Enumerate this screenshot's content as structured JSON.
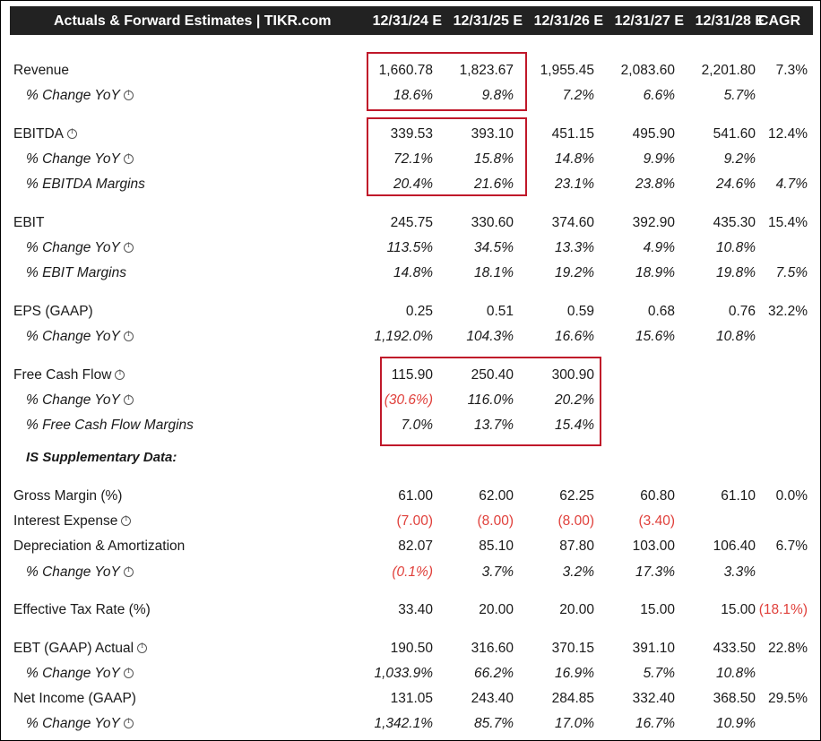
{
  "header": {
    "title": "Actuals & Forward Estimates | TIKR.com",
    "columns": [
      "12/31/24 E",
      "12/31/25 E",
      "12/31/26 E",
      "12/31/27 E",
      "12/31/28 E",
      "CAGR"
    ]
  },
  "colors": {
    "header_bg": "#222222",
    "negative": "#e0403b",
    "highlight_border": "#c0182a"
  },
  "rows": [
    {
      "label": "Revenue",
      "values": [
        "1,660.78",
        "1,823.67",
        "1,955.45",
        "2,083.60",
        "2,201.80",
        "7.3%"
      ]
    },
    {
      "label": "% Change YoY",
      "values": [
        "18.6%",
        "9.8%",
        "7.2%",
        "6.6%",
        "5.7%",
        ""
      ]
    },
    {
      "label": "EBITDA",
      "values": [
        "339.53",
        "393.10",
        "451.15",
        "495.90",
        "541.60",
        "12.4%"
      ]
    },
    {
      "label": "% Change YoY",
      "values": [
        "72.1%",
        "15.8%",
        "14.8%",
        "9.9%",
        "9.2%",
        ""
      ]
    },
    {
      "label": "% EBITDA Margins",
      "values": [
        "20.4%",
        "21.6%",
        "23.1%",
        "23.8%",
        "24.6%",
        "4.7%"
      ]
    },
    {
      "label": "EBIT",
      "values": [
        "245.75",
        "330.60",
        "374.60",
        "392.90",
        "435.30",
        "15.4%"
      ]
    },
    {
      "label": "% Change YoY",
      "values": [
        "113.5%",
        "34.5%",
        "13.3%",
        "4.9%",
        "10.8%",
        ""
      ]
    },
    {
      "label": "% EBIT Margins",
      "values": [
        "14.8%",
        "18.1%",
        "19.2%",
        "18.9%",
        "19.8%",
        "7.5%"
      ]
    },
    {
      "label": "EPS (GAAP)",
      "values": [
        "0.25",
        "0.51",
        "0.59",
        "0.68",
        "0.76",
        "32.2%"
      ]
    },
    {
      "label": "% Change YoY",
      "values": [
        "1,192.0%",
        "104.3%",
        "16.6%",
        "15.6%",
        "10.8%",
        ""
      ]
    },
    {
      "label": "Free Cash Flow",
      "values": [
        "115.90",
        "250.40",
        "300.90",
        "",
        "",
        ""
      ]
    },
    {
      "label": "% Change YoY",
      "values": [
        "(30.6%)",
        "116.0%",
        "20.2%",
        "",
        "",
        ""
      ]
    },
    {
      "label": "% Free Cash Flow Margins",
      "values": [
        "7.0%",
        "13.7%",
        "15.4%",
        "",
        "",
        ""
      ]
    },
    {
      "label": "IS Supplementary Data:",
      "values": [
        "",
        "",
        "",
        "",
        "",
        ""
      ]
    },
    {
      "label": "Gross Margin (%)",
      "values": [
        "61.00",
        "62.00",
        "62.25",
        "60.80",
        "61.10",
        "0.0%"
      ]
    },
    {
      "label": "Interest Expense",
      "values": [
        "(7.00)",
        "(8.00)",
        "(8.00)",
        "(3.40)",
        "",
        ""
      ]
    },
    {
      "label": "Depreciation & Amortization",
      "values": [
        "82.07",
        "85.10",
        "87.80",
        "103.00",
        "106.40",
        "6.7%"
      ]
    },
    {
      "label": "% Change YoY",
      "values": [
        "(0.1%)",
        "3.7%",
        "3.2%",
        "17.3%",
        "3.3%",
        ""
      ]
    },
    {
      "label": "Effective Tax Rate (%)",
      "values": [
        "33.40",
        "20.00",
        "20.00",
        "15.00",
        "15.00",
        "(18.1%)"
      ]
    },
    {
      "label": "EBT (GAAP) Actual",
      "values": [
        "190.50",
        "316.60",
        "370.15",
        "391.10",
        "433.50",
        "22.8%"
      ]
    },
    {
      "label": "% Change YoY",
      "values": [
        "1,033.9%",
        "66.2%",
        "16.9%",
        "5.7%",
        "10.8%",
        ""
      ]
    },
    {
      "label": "Net Income (GAAP)",
      "values": [
        "131.05",
        "243.40",
        "284.85",
        "332.40",
        "368.50",
        "29.5%"
      ]
    },
    {
      "label": "% Change YoY",
      "values": [
        "1,342.1%",
        "85.7%",
        "17.0%",
        "16.7%",
        "10.9%",
        ""
      ]
    }
  ]
}
